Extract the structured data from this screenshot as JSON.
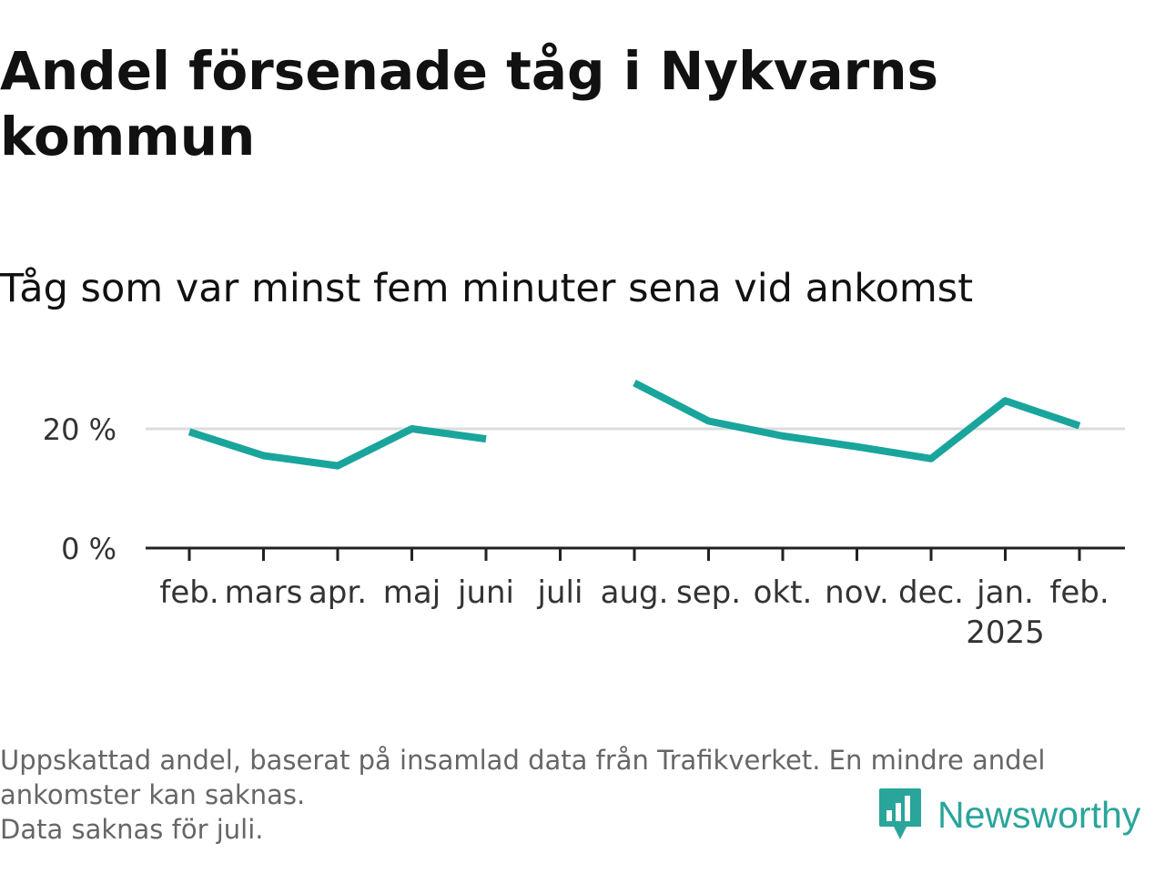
{
  "title": "Andel försenade tåg i Nykvarns kommun",
  "subtitle": "Tåg som var minst fem minuter sena vid ankomst",
  "footnote": {
    "line1": "Uppskattad andel, baserat på insamlad data från Trafikverket. En mindre andel ankomster kan saknas.",
    "line2": "Data saknas för juli."
  },
  "brand": {
    "name": "Newsworthy",
    "icon": "newsworthy-logo-icon",
    "color": "#2aa59b"
  },
  "colors": {
    "line": "#1aa59c",
    "grid": "#dddddd",
    "axis": "#222222",
    "text": "#111111"
  },
  "chart_data": {
    "type": "line",
    "title": "Andel försenade tåg i Nykvarns kommun",
    "subtitle": "Tåg som var minst fem minuter sena vid ankomst",
    "categories": [
      "feb.",
      "mars",
      "apr.",
      "maj",
      "juni",
      "juli",
      "aug.",
      "sep.",
      "okt.",
      "nov.",
      "dec.",
      "jan.",
      "feb."
    ],
    "year_labels": [
      "",
      "",
      "",
      "",
      "",
      "",
      "",
      "",
      "",
      "",
      "",
      "2025",
      ""
    ],
    "series": [
      {
        "values": [
          19.5,
          15.5,
          13.8,
          20.0,
          18.3,
          null,
          27.7,
          21.3,
          18.8,
          17.0,
          15.0,
          24.7,
          20.5
        ]
      }
    ],
    "y_ticks": [
      0,
      20
    ],
    "y_tick_labels": [
      "0 %",
      "20 %"
    ],
    "ylim": [
      0,
      30
    ],
    "xlabel": "",
    "ylabel": "",
    "grid": true,
    "legend": "none"
  }
}
